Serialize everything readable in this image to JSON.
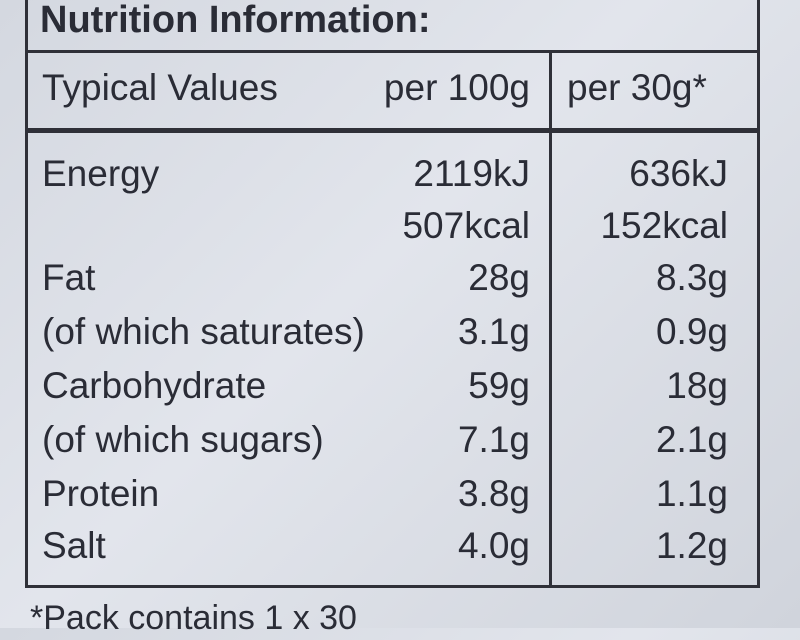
{
  "title": "Nutrition Information:",
  "header": [
    "Typical Values",
    "per 100g",
    "per 30g*"
  ],
  "rows": [
    [
      "Energy",
      "2119kJ",
      "636kJ"
    ],
    [
      "Fat",
      "28g",
      "8.3g"
    ],
    [
      "(of which saturates)",
      "3.1g",
      "0.9g"
    ],
    [
      "Carbohydrate",
      "59g",
      "18g"
    ],
    [
      "(of which sugars)",
      "7.1g",
      "2.1g"
    ],
    [
      "Protein",
      "3.8g",
      "1.1g"
    ],
    [
      "Salt",
      "4.0g",
      "1.2g"
    ]
  ],
  "energy_kcal": [
    "507kcal",
    "152kcal"
  ],
  "footnote": "*Pack contains 1 x 30"
}
